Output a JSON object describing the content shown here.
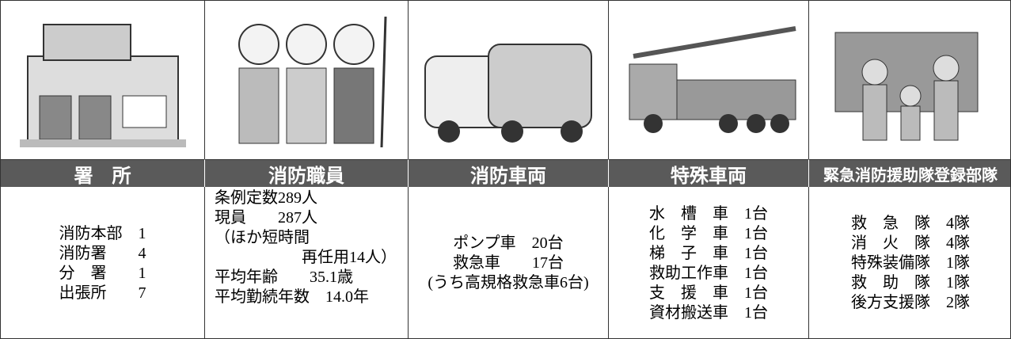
{
  "table": {
    "columns": [
      {
        "header": "署　所",
        "lines": [
          "消防本部　1",
          "消防署　　4",
          "分　署　　1",
          "出張所　　7"
        ]
      },
      {
        "header": "消防職員",
        "lines": [
          "条例定数289人",
          "現員　　287人",
          "（ほか短時間",
          "再任用14人）",
          "平均年齢　　35.1歳",
          "平均勤続年数　14.0年"
        ]
      },
      {
        "header": "消防車両",
        "lines": [
          "ポンプ車　20台",
          "救急車　　17台",
          "(うち高規格救急車6台)"
        ]
      },
      {
        "header": "特殊車両",
        "lines": [
          "水　槽　車　1台",
          "化　学　車　1台",
          "梯　子　車　1台",
          "救助工作車　1台",
          "支　援　車　1台",
          "資材搬送車　1台"
        ]
      },
      {
        "header": "緊急消防援助隊登録部隊",
        "lines": [
          "救　急　隊　4隊",
          "消　火　隊　4隊",
          "特殊装備隊　1隊",
          "救　助　隊　1隊",
          "後方支援隊　2隊"
        ]
      }
    ]
  }
}
